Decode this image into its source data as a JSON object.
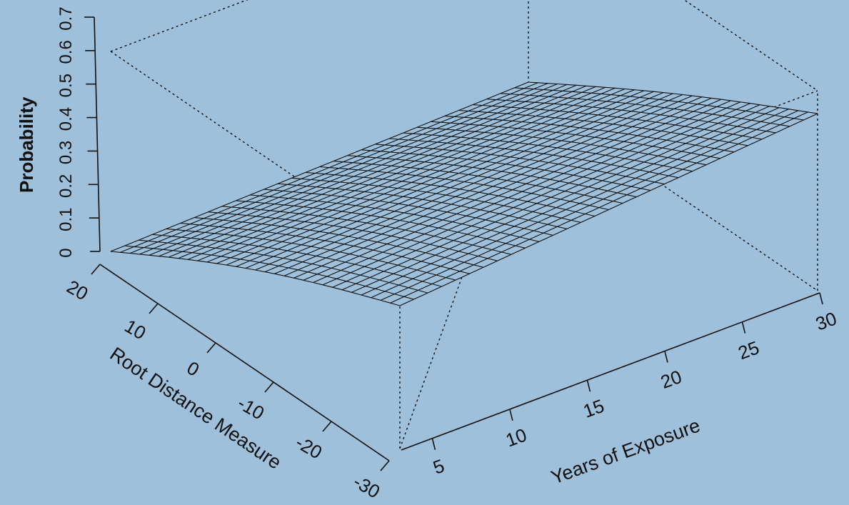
{
  "background_color": "#9ec0da",
  "line_color": "#111111",
  "chart_data": {
    "type": "surface-3d",
    "xlabel": "Years of Exposure",
    "ylabel": "Root Distance Measure",
    "zlabel": "Probability",
    "xlim": [
      3,
      30
    ],
    "ylim": [
      -30,
      20
    ],
    "zlim": [
      0,
      0.7
    ],
    "x_ticks": [
      "5",
      "10",
      "15",
      "20",
      "25",
      "30"
    ],
    "y_ticks": [
      "20",
      "10",
      "0",
      "-10",
      "-20",
      "-30"
    ],
    "z_ticks": [
      "0",
      "0.1",
      "0.2",
      "0.3",
      "0.4",
      "0.5",
      "0.6",
      "0.7"
    ],
    "grid_resolution": [
      30,
      30
    ],
    "corner_values": [
      {
        "x": 3,
        "y": 20,
        "z": 0.0
      },
      {
        "x": 3,
        "y": -30,
        "z": 0.5
      },
      {
        "x": 30,
        "y": 20,
        "z": 0.04
      },
      {
        "x": 30,
        "y": -30,
        "z": 0.62
      }
    ]
  }
}
